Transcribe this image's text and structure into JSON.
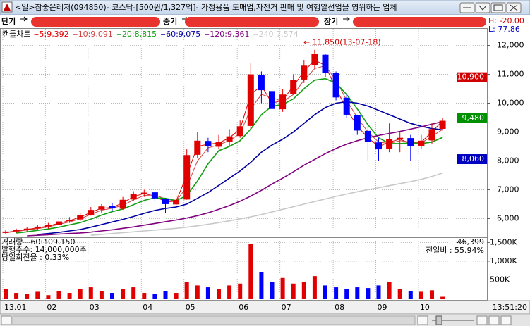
{
  "window": {
    "title": "<일>참좋은레저(094850)- 코스닥-[500원/1,327억]- 가정용품 도매업,자전거 판매 및 여행알선업을 영위하는 업체",
    "buttons": [
      "단기",
      "중기",
      "장기"
    ],
    "high": "H: -20.00",
    "low": "L: 77.86",
    "clock": "13:51:20"
  },
  "chart_data": {
    "type": "candlestick",
    "candle_label": "캔들차트",
    "categories": [
      "13.01",
      null,
      null,
      null,
      "02",
      null,
      null,
      null,
      "03",
      null,
      null,
      null,
      null,
      "04",
      null,
      null,
      null,
      "05",
      null,
      null,
      null,
      null,
      "06",
      null,
      null,
      null,
      "07",
      null,
      null,
      null,
      null,
      "08",
      null,
      null,
      null,
      "09",
      null,
      null,
      null,
      "10",
      null,
      null
    ],
    "open": [
      5500,
      5560,
      5610,
      5660,
      5730,
      5790,
      5910,
      5970,
      6130,
      6310,
      6430,
      6340,
      6660,
      6860,
      6910,
      6690,
      6490,
      6660,
      8210,
      8690,
      8490,
      8660,
      8860,
      9210,
      10980,
      10420,
      9790,
      10310,
      10820,
      11310,
      11680,
      11040,
      10190,
      9590,
      9040,
      8640,
      8410,
      8760,
      8790,
      8510,
      8710,
      9110
    ],
    "high": [
      5600,
      5650,
      5700,
      5780,
      5850,
      5950,
      6050,
      6200,
      6400,
      6500,
      6550,
      6750,
      6950,
      7000,
      6950,
      6700,
      6800,
      8400,
      9000,
      8800,
      8900,
      9100,
      9400,
      11400,
      11100,
      10500,
      10500,
      11000,
      11500,
      11850,
      11700,
      11100,
      10300,
      9600,
      9200,
      8800,
      9300,
      9000,
      8900,
      8900,
      9300,
      9500
    ],
    "low": [
      5450,
      5500,
      5550,
      5600,
      5650,
      5750,
      5850,
      5900,
      6100,
      6200,
      6250,
      6300,
      6600,
      6750,
      6600,
      6200,
      6450,
      6650,
      8100,
      8300,
      8400,
      8500,
      8800,
      9100,
      10000,
      8600,
      9700,
      10300,
      10700,
      11200,
      10900,
      10100,
      9500,
      8900,
      8000,
      8000,
      8300,
      8300,
      8000,
      8400,
      8600,
      9050
    ],
    "close": [
      5550,
      5600,
      5650,
      5720,
      5780,
      5900,
      5960,
      6120,
      6300,
      6420,
      6350,
      6650,
      6850,
      6900,
      6700,
      6500,
      6650,
      8200,
      8700,
      8500,
      8650,
      8850,
      9200,
      11000,
      10450,
      9800,
      10300,
      10800,
      11300,
      11700,
      11050,
      10200,
      9600,
      9050,
      8650,
      8400,
      8750,
      8800,
      8500,
      8700,
      9100,
      9390
    ],
    "up_color": "#e00000",
    "down_color": "#0000ff",
    "series": [
      {
        "name": "5:9,392",
        "color": "#e00000",
        "values": [
          5520,
          5570,
          5620,
          5680,
          5740,
          5840,
          5930,
          6050,
          6220,
          6360,
          6380,
          6550,
          6760,
          6870,
          6780,
          6580,
          6600,
          7500,
          8500,
          8580,
          8620,
          8800,
          9100,
          10300,
          10600,
          10000,
          10100,
          10600,
          11100,
          11500,
          11300,
          10500,
          9800,
          9200,
          8800,
          8500,
          8650,
          8750,
          8600,
          8650,
          9000,
          9392
        ]
      },
      {
        "name": "10:9,091",
        "color": "#d04040",
        "values": [
          5510,
          5550,
          5600,
          5650,
          5710,
          5800,
          5880,
          5990,
          6150,
          6290,
          6360,
          6460,
          6650,
          6800,
          6820,
          6680,
          6600,
          7100,
          8000,
          8450,
          8560,
          8700,
          8950,
          9800,
          10300,
          10200,
          10050,
          10300,
          10800,
          11200,
          11300,
          10800,
          10100,
          9500,
          9000,
          8650,
          8600,
          8700,
          8650,
          8620,
          8850,
          9091
        ]
      },
      {
        "name": "20:8,815",
        "color": "#10a010",
        "values": [
          null,
          5500,
          5540,
          5590,
          5640,
          5700,
          5780,
          5860,
          5980,
          6120,
          6240,
          6330,
          6480,
          6630,
          6720,
          6700,
          6620,
          6800,
          7300,
          7900,
          8350,
          8500,
          8700,
          9100,
          9600,
          9900,
          9950,
          10150,
          10500,
          10800,
          10850,
          10700,
          10300,
          9800,
          9250,
          8800,
          8600,
          8600,
          8620,
          8600,
          8650,
          8815
        ]
      },
      {
        "name": "60:9,075",
        "color": "#0000a0",
        "values": [
          null,
          null,
          null,
          5450,
          5480,
          5520,
          5570,
          5620,
          5700,
          5790,
          5880,
          5970,
          6070,
          6180,
          6280,
          6350,
          6400,
          6500,
          6700,
          6900,
          7150,
          7400,
          7650,
          7950,
          8300,
          8550,
          8750,
          9000,
          9300,
          9600,
          9850,
          10000,
          10050,
          10000,
          9900,
          9750,
          9600,
          9450,
          9300,
          9200,
          9120,
          9075
        ]
      },
      {
        "name": "120:9,361",
        "color": "#800080",
        "values": [
          null,
          null,
          5400,
          5420,
          5440,
          5460,
          5480,
          5500,
          5530,
          5570,
          5610,
          5660,
          5710,
          5770,
          5830,
          5890,
          5950,
          6020,
          6100,
          6200,
          6320,
          6450,
          6600,
          6780,
          6980,
          7200,
          7400,
          7620,
          7850,
          8050,
          8250,
          8430,
          8580,
          8700,
          8800,
          8880,
          8950,
          9020,
          9100,
          9180,
          9270,
          9361
        ]
      },
      {
        "name": "240:7,574",
        "color": "#c8c8c8",
        "values": [
          null,
          null,
          null,
          null,
          null,
          null,
          null,
          null,
          5420,
          5450,
          5480,
          5510,
          5540,
          5570,
          5600,
          5630,
          5660,
          5700,
          5750,
          5800,
          5860,
          5920,
          5990,
          6060,
          6140,
          6230,
          6320,
          6410,
          6500,
          6590,
          6680,
          6770,
          6850,
          6930,
          7000,
          7070,
          7140,
          7210,
          7280,
          7360,
          7460,
          7574
        ]
      }
    ],
    "ylim": [
      5400,
      12600
    ],
    "yticks": [
      {
        "value": 6000,
        "label": "6,000"
      },
      {
        "value": 7000,
        "label": "7,000"
      },
      {
        "value": 8000,
        "label": "8,000"
      },
      {
        "value": 9000,
        "label": "9,000"
      },
      {
        "value": 10000,
        "label": "10,000"
      },
      {
        "value": 11000,
        "label": "11,000"
      },
      {
        "value": 12000,
        "label": "12,000"
      }
    ],
    "grid": true,
    "annotation": "← 11,850(13-07-18)",
    "price_markers": [
      {
        "value": 10900,
        "label": "10,900",
        "color": "#d00000"
      },
      {
        "value": 9480,
        "label": "9,480",
        "color": "#009000"
      },
      {
        "value": 8060,
        "label": "8,060",
        "color": "#0000c0"
      }
    ],
    "volume": [
      250000,
      150000,
      120000,
      180000,
      90000,
      200000,
      150000,
      250000,
      300000,
      200000,
      150000,
      250000,
      300000,
      150000,
      120000,
      200000,
      150000,
      450000,
      350000,
      300000,
      250000,
      350000,
      400000,
      1450000,
      700000,
      450000,
      550000,
      400000,
      450000,
      600000,
      350000,
      300000,
      250000,
      300000,
      280000,
      350000,
      450000,
      250000,
      200000,
      180000,
      220000,
      46399
    ],
    "volume_ylim": [
      0,
      1600000
    ],
    "volume_yticks": [
      {
        "value": 500000,
        "label": "500K"
      },
      {
        "value": 1000000,
        "label": "1,000K"
      },
      {
        "value": 1500000,
        "label": "1,500K"
      }
    ],
    "volume_ma_label": "거래량—60:109,150",
    "shares_label": "발행주수: 14,000,000주",
    "turnover_label": "당일회전율 : 0.33%",
    "volume_last_label": "46,399",
    "prev_ratio_label": "전일비 : 55.94%"
  }
}
